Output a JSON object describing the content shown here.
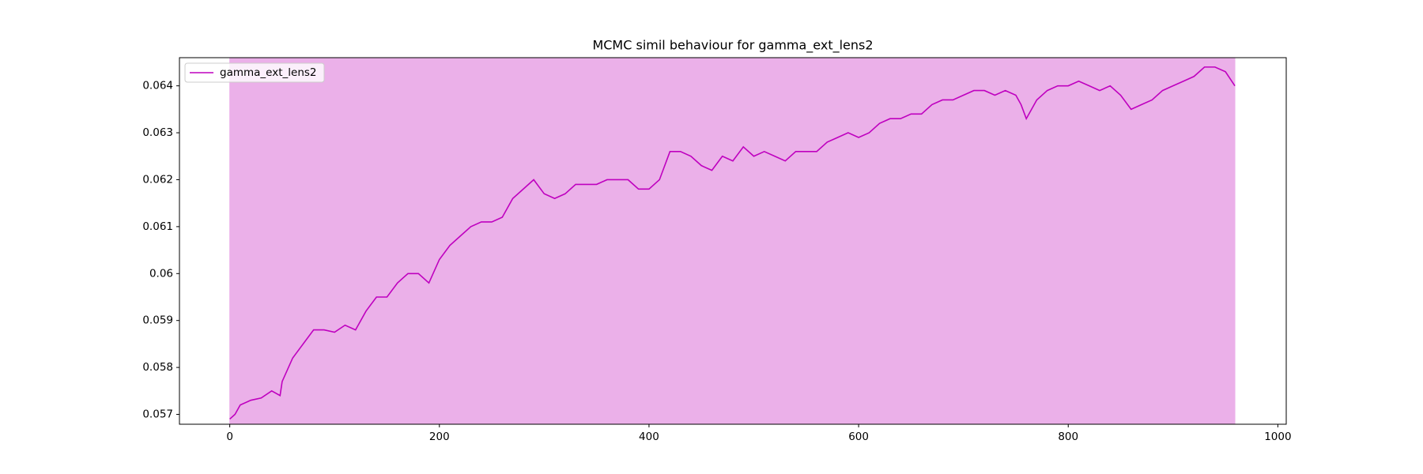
{
  "chart_data": {
    "type": "line",
    "title": "MCMC simil behaviour for gamma_ext_lens2",
    "x": [
      0,
      5,
      10,
      20,
      30,
      40,
      48,
      50,
      60,
      70,
      80,
      90,
      100,
      110,
      120,
      130,
      140,
      150,
      160,
      170,
      180,
      190,
      200,
      210,
      220,
      230,
      240,
      250,
      260,
      270,
      280,
      290,
      300,
      310,
      320,
      330,
      340,
      350,
      360,
      370,
      380,
      390,
      400,
      410,
      420,
      430,
      440,
      450,
      460,
      470,
      480,
      490,
      500,
      510,
      520,
      530,
      540,
      550,
      560,
      570,
      580,
      590,
      600,
      610,
      620,
      630,
      640,
      650,
      660,
      670,
      680,
      690,
      700,
      710,
      720,
      730,
      740,
      750,
      755,
      760,
      770,
      780,
      790,
      800,
      810,
      820,
      830,
      840,
      850,
      860,
      870,
      880,
      890,
      900,
      910,
      920,
      930,
      940,
      950,
      959
    ],
    "series": [
      {
        "name": "gamma_ext_lens2",
        "color": "#bf00bf",
        "values": [
          0.0569,
          0.057,
          0.0572,
          0.0573,
          0.05735,
          0.0575,
          0.0574,
          0.0577,
          0.0582,
          0.0585,
          0.0588,
          0.0588,
          0.05875,
          0.0589,
          0.0588,
          0.0592,
          0.0595,
          0.0595,
          0.0598,
          0.06,
          0.06,
          0.0598,
          0.0603,
          0.0606,
          0.0608,
          0.061,
          0.0611,
          0.0611,
          0.0612,
          0.0616,
          0.0618,
          0.062,
          0.0617,
          0.0616,
          0.0617,
          0.0619,
          0.0619,
          0.0619,
          0.062,
          0.062,
          0.062,
          0.0618,
          0.0618,
          0.062,
          0.0626,
          0.0626,
          0.0625,
          0.0623,
          0.0622,
          0.0625,
          0.0624,
          0.0627,
          0.0625,
          0.0626,
          0.0625,
          0.0624,
          0.0626,
          0.0626,
          0.0626,
          0.0628,
          0.0629,
          0.063,
          0.0629,
          0.063,
          0.0632,
          0.0633,
          0.0633,
          0.0634,
          0.0634,
          0.0636,
          0.0637,
          0.0637,
          0.0638,
          0.0639,
          0.0639,
          0.0638,
          0.0639,
          0.0638,
          0.0636,
          0.0633,
          0.0637,
          0.0639,
          0.064,
          0.064,
          0.0641,
          0.064,
          0.0639,
          0.064,
          0.0638,
          0.0635,
          0.0636,
          0.0637,
          0.0639,
          0.064,
          0.0641,
          0.0642,
          0.0644,
          0.0644,
          0.0643,
          0.064
        ]
      }
    ],
    "fill_between": {
      "x": [
        0,
        959
      ],
      "color": "#ebb0e9"
    },
    "xlim": [
      -48,
      1008
    ],
    "ylim": [
      0.05679,
      0.0646
    ],
    "xticks": [
      0,
      200,
      400,
      600,
      800,
      1000
    ],
    "yticks": [
      0.057,
      0.058,
      0.059,
      0.06,
      0.061,
      0.062,
      0.063,
      0.064
    ],
    "legend": "upper left"
  }
}
